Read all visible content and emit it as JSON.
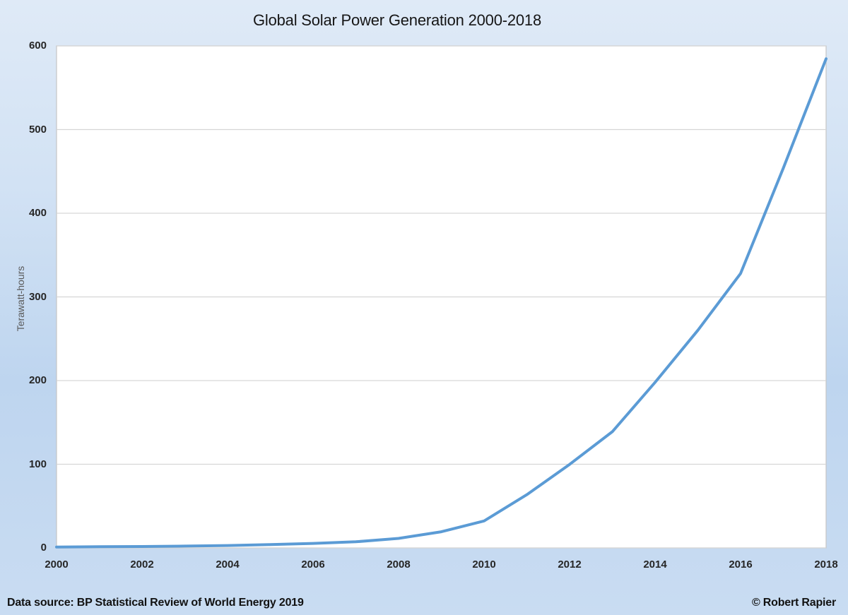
{
  "chart": {
    "title": "Global Solar Power Generation 2000-2018"
  },
  "footer": {
    "source": "Data source: BP Statistical Review of World Energy 2019",
    "copyright": "© Robert Rapier"
  },
  "chart_data": {
    "type": "line",
    "title": "Global Solar Power Generation 2000-2018",
    "xlabel": "",
    "ylabel": "Terawatt-hours",
    "x": [
      2000,
      2001,
      2002,
      2003,
      2004,
      2005,
      2006,
      2007,
      2008,
      2009,
      2010,
      2011,
      2012,
      2013,
      2014,
      2015,
      2016,
      2017,
      2018
    ],
    "values": [
      1.1,
      1.4,
      1.7,
      2.2,
      2.9,
      4.0,
      5.4,
      7.3,
      11.4,
      19.3,
      32.2,
      63.6,
      99.8,
      138.9,
      197.9,
      260.1,
      328.0,
      454.0,
      584.6
    ],
    "xticks": [
      2000,
      2002,
      2004,
      2006,
      2008,
      2010,
      2012,
      2014,
      2016,
      2018
    ],
    "yticks": [
      0,
      100,
      200,
      300,
      400,
      500,
      600
    ],
    "xlim": [
      2000,
      2018
    ],
    "ylim": [
      0,
      600
    ],
    "grid": true,
    "grid_orientation": "horizontal-only",
    "legend": "none",
    "line_color": "#5b9bd5",
    "grid_color": "#d6d6d6",
    "plot_border_color": "#c5c5c5",
    "plot_bg": "#ffffff"
  }
}
